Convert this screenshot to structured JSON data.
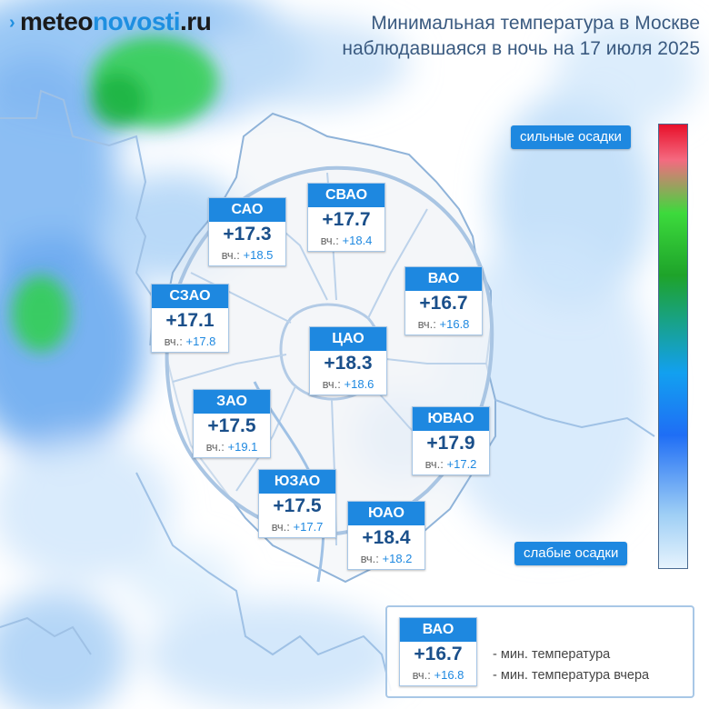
{
  "logo": {
    "part1": "meteo",
    "part2": "novosti",
    "part3": ".ru"
  },
  "title": {
    "line1": "Минимальная температура в Москве",
    "line2": "наблюдавшаяся в ночь на 17 июля 2025"
  },
  "scale": {
    "top_label": "сильные осадки",
    "bottom_label": "слабые осадки"
  },
  "districts": [
    {
      "name": "САО",
      "temp": "+17.3",
      "prev_label": "вч.:",
      "prev_temp": "+18.5"
    },
    {
      "name": "СВАО",
      "temp": "+17.7",
      "prev_label": "вч.:",
      "prev_temp": "+18.4"
    },
    {
      "name": "ВАО",
      "temp": "+16.7",
      "prev_label": "вч.:",
      "prev_temp": "+16.8"
    },
    {
      "name": "СЗАО",
      "temp": "+17.1",
      "prev_label": "вч.:",
      "prev_temp": "+17.8"
    },
    {
      "name": "ЦАО",
      "temp": "+18.3",
      "prev_label": "вч.:",
      "prev_temp": "+18.6"
    },
    {
      "name": "ЗАО",
      "temp": "+17.5",
      "prev_label": "вч.:",
      "prev_temp": "+19.1"
    },
    {
      "name": "ЮВАО",
      "temp": "+17.9",
      "prev_label": "вч.:",
      "prev_temp": "+17.2"
    },
    {
      "name": "ЮЗАО",
      "temp": "+17.5",
      "prev_label": "вч.:",
      "prev_temp": "+17.7"
    },
    {
      "name": "ЮАО",
      "temp": "+18.4",
      "prev_label": "вч.:",
      "prev_temp": "+18.2"
    }
  ],
  "legend": {
    "sample": {
      "name": "ВАО",
      "temp": "+16.7",
      "prev_label": "вч.:",
      "prev_temp": "+16.8"
    },
    "line1": "- мин. температура",
    "line2": "- мин. температура вчера"
  }
}
